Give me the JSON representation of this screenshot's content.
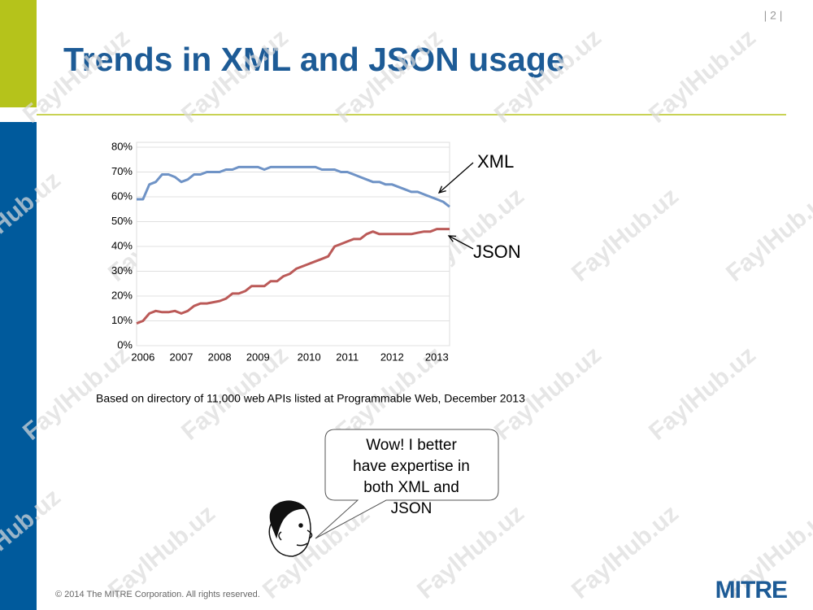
{
  "slide": {
    "page_number": "| 2 |",
    "title": "Trends in XML and JSON usage",
    "speech_bubble": [
      "Wow! I better",
      "have expertise in",
      "both XML and",
      "JSON"
    ],
    "footer": "© 2014 The MITRE Corporation. All rights reserved.",
    "logo": "MITRE",
    "watermark": "FaylHub.uz"
  },
  "chart_data": {
    "type": "line",
    "caption": "Based on directory of 11,000 web APIs listed at Programmable Web, December 2013",
    "categories": [
      null,
      "2006",
      null,
      null,
      null,
      null,
      null,
      "2007",
      null,
      null,
      null,
      null,
      null,
      "2008",
      null,
      null,
      null,
      null,
      null,
      "2009",
      null,
      null,
      null,
      null,
      null,
      null,
      null,
      "2010",
      null,
      null,
      null,
      null,
      null,
      "2011",
      null,
      null,
      null,
      null,
      null,
      null,
      "2012",
      null,
      null,
      null,
      null,
      null,
      null,
      "2013",
      null,
      null
    ],
    "series": [
      {
        "name": "XML",
        "color": "#6f93c6",
        "values": [
          59,
          59,
          65,
          66,
          69,
          69,
          68,
          66,
          67,
          69,
          69,
          70,
          70,
          70,
          71,
          71,
          72,
          72,
          72,
          72,
          71,
          72,
          72,
          72,
          72,
          72,
          72,
          72,
          72,
          71,
          71,
          71,
          70,
          70,
          69,
          68,
          67,
          66,
          66,
          65,
          65,
          64,
          63,
          62,
          62,
          61,
          60,
          59,
          58,
          56
        ]
      },
      {
        "name": "JSON",
        "color": "#bb5a58",
        "values": [
          9,
          10,
          13,
          14,
          13.5,
          13.5,
          14,
          13,
          14,
          16,
          17,
          17,
          17.5,
          18,
          19,
          21,
          21,
          22,
          24,
          24,
          24,
          26,
          26,
          28,
          29,
          31,
          32,
          33,
          34,
          35,
          36,
          40,
          41,
          42,
          43,
          43,
          45,
          46,
          45,
          45,
          45,
          45,
          45,
          45,
          45.5,
          46,
          46,
          47,
          47,
          47
        ]
      }
    ],
    "ylim": [
      0,
      80
    ],
    "yticks": [
      {
        "value": 0,
        "label": "0%"
      },
      {
        "value": 10,
        "label": "10%"
      },
      {
        "value": 20,
        "label": "20%"
      },
      {
        "value": 30,
        "label": "30%"
      },
      {
        "value": 40,
        "label": "40%"
      },
      {
        "value": 50,
        "label": "50%"
      },
      {
        "value": 60,
        "label": "60%"
      },
      {
        "value": 70,
        "label": "70%"
      },
      {
        "value": 80,
        "label": "80%"
      }
    ],
    "grid": true
  }
}
